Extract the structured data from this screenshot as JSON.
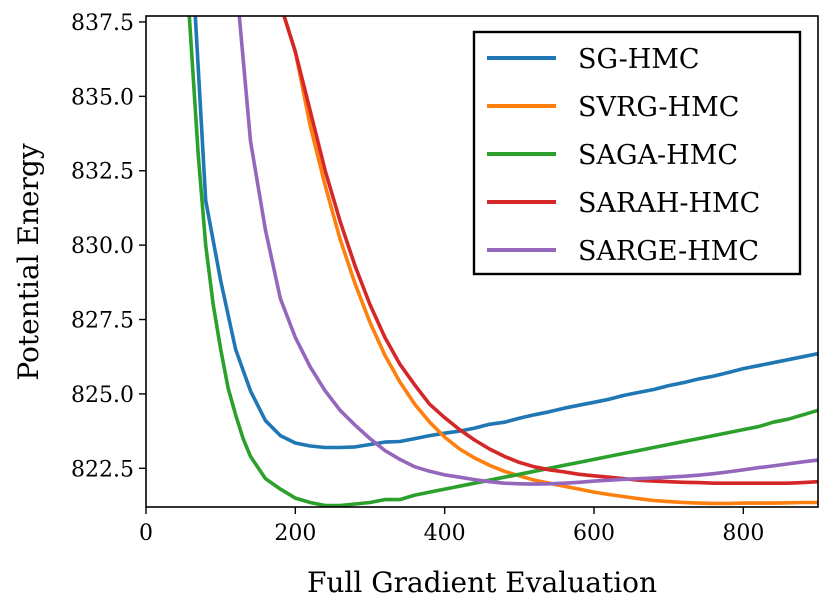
{
  "chart_data": {
    "type": "line",
    "title": "",
    "xlabel": "Full Gradient Evaluation",
    "ylabel": "Potential Energy",
    "xlim": [
      0,
      900
    ],
    "ylim": [
      821.2,
      837.7
    ],
    "xticks": [
      0,
      200,
      400,
      600,
      800
    ],
    "xtick_labels": [
      "0",
      "200",
      "400",
      "600",
      "800"
    ],
    "yticks": [
      822.5,
      825.0,
      827.5,
      830.0,
      832.5,
      835.0,
      837.5
    ],
    "ytick_labels": [
      "822.5",
      "825.0",
      "827.5",
      "830.0",
      "832.5",
      "835.0",
      "837.5"
    ],
    "grid": false,
    "legend_position": "upper-right",
    "series": [
      {
        "name": "SG-HMC",
        "color": "#1f77b4",
        "x": [
          66,
          80,
          100,
          120,
          140,
          160,
          180,
          200,
          220,
          240,
          260,
          280,
          300,
          320,
          340,
          360,
          380,
          400,
          420,
          440,
          460,
          480,
          500,
          520,
          540,
          560,
          580,
          600,
          620,
          640,
          660,
          680,
          700,
          720,
          740,
          760,
          780,
          800,
          820,
          840,
          860,
          880,
          900
        ],
        "y": [
          837.7,
          831.5,
          828.8,
          826.5,
          825.1,
          824.1,
          823.6,
          823.35,
          823.25,
          823.2,
          823.2,
          823.22,
          823.3,
          823.38,
          823.4,
          823.5,
          823.6,
          823.68,
          823.75,
          823.85,
          823.98,
          824.05,
          824.18,
          824.3,
          824.4,
          824.52,
          824.62,
          824.72,
          824.82,
          824.95,
          825.05,
          825.15,
          825.28,
          825.38,
          825.5,
          825.6,
          825.72,
          825.85,
          825.95,
          826.05,
          826.15,
          826.25,
          826.35
        ]
      },
      {
        "name": "SVRG-HMC",
        "color": "#ff7f0e",
        "x": [
          185,
          200,
          220,
          240,
          260,
          280,
          300,
          320,
          340,
          360,
          380,
          400,
          420,
          440,
          460,
          480,
          500,
          520,
          540,
          560,
          580,
          600,
          620,
          640,
          660,
          680,
          700,
          720,
          740,
          760,
          780,
          800,
          820,
          840,
          860,
          880,
          900
        ],
        "y": [
          837.7,
          836.5,
          834.0,
          832.0,
          830.2,
          828.7,
          827.4,
          826.3,
          825.4,
          824.65,
          824.05,
          823.55,
          823.15,
          822.85,
          822.6,
          822.4,
          822.25,
          822.1,
          822.0,
          821.9,
          821.8,
          821.7,
          821.62,
          821.55,
          821.48,
          821.42,
          821.38,
          821.35,
          821.33,
          821.32,
          821.32,
          821.33,
          821.33,
          821.33,
          821.34,
          821.35,
          821.35
        ]
      },
      {
        "name": "SAGA-HMC",
        "color": "#2ca02c",
        "x": [
          58,
          70,
          80,
          90,
          100,
          110,
          120,
          130,
          140,
          160,
          180,
          200,
          220,
          240,
          260,
          280,
          300,
          320,
          340,
          360,
          380,
          400,
          420,
          440,
          460,
          480,
          500,
          520,
          540,
          560,
          580,
          600,
          620,
          640,
          660,
          680,
          700,
          720,
          740,
          760,
          780,
          800,
          820,
          840,
          860,
          880,
          900
        ],
        "y": [
          837.7,
          833.0,
          830.0,
          828.0,
          826.5,
          825.2,
          824.3,
          823.5,
          822.9,
          822.15,
          821.8,
          821.5,
          821.35,
          821.25,
          821.25,
          821.3,
          821.35,
          821.45,
          821.45,
          821.6,
          821.7,
          821.8,
          821.9,
          822.0,
          822.1,
          822.2,
          822.3,
          822.4,
          822.5,
          822.6,
          822.7,
          822.8,
          822.9,
          823.0,
          823.1,
          823.2,
          823.3,
          823.4,
          823.5,
          823.6,
          823.7,
          823.8,
          823.9,
          824.05,
          824.15,
          824.3,
          824.45
        ]
      },
      {
        "name": "SARAH-HMC",
        "color": "#d62728",
        "x": [
          185,
          200,
          220,
          240,
          260,
          280,
          300,
          320,
          340,
          360,
          380,
          400,
          420,
          440,
          460,
          480,
          500,
          520,
          540,
          560,
          580,
          600,
          620,
          640,
          660,
          680,
          700,
          720,
          740,
          760,
          780,
          800,
          820,
          840,
          860,
          880,
          900
        ],
        "y": [
          837.7,
          836.5,
          834.5,
          832.5,
          830.8,
          829.3,
          828.0,
          826.9,
          826.0,
          825.3,
          824.65,
          824.2,
          823.8,
          823.45,
          823.15,
          822.9,
          822.7,
          822.55,
          822.45,
          822.38,
          822.3,
          822.25,
          822.2,
          822.15,
          822.1,
          822.07,
          822.05,
          822.03,
          822.02,
          822.0,
          822.0,
          822.0,
          822.0,
          822.0,
          822.0,
          822.02,
          822.05
        ]
      },
      {
        "name": "SARGE-HMC",
        "color": "#9467bd",
        "x": [
          125,
          140,
          160,
          180,
          200,
          220,
          240,
          260,
          280,
          300,
          320,
          340,
          360,
          380,
          400,
          420,
          440,
          460,
          480,
          500,
          520,
          540,
          560,
          580,
          600,
          620,
          640,
          660,
          680,
          700,
          720,
          740,
          760,
          780,
          800,
          820,
          840,
          860,
          880,
          900
        ],
        "y": [
          837.7,
          833.5,
          830.5,
          828.2,
          826.9,
          825.9,
          825.1,
          824.45,
          823.95,
          823.5,
          823.1,
          822.8,
          822.55,
          822.4,
          822.28,
          822.2,
          822.12,
          822.05,
          822.0,
          821.98,
          821.97,
          821.98,
          822.0,
          822.03,
          822.07,
          822.1,
          822.13,
          822.15,
          822.17,
          822.2,
          822.23,
          822.27,
          822.32,
          822.38,
          822.45,
          822.52,
          822.58,
          822.65,
          822.72,
          822.78
        ]
      }
    ]
  }
}
